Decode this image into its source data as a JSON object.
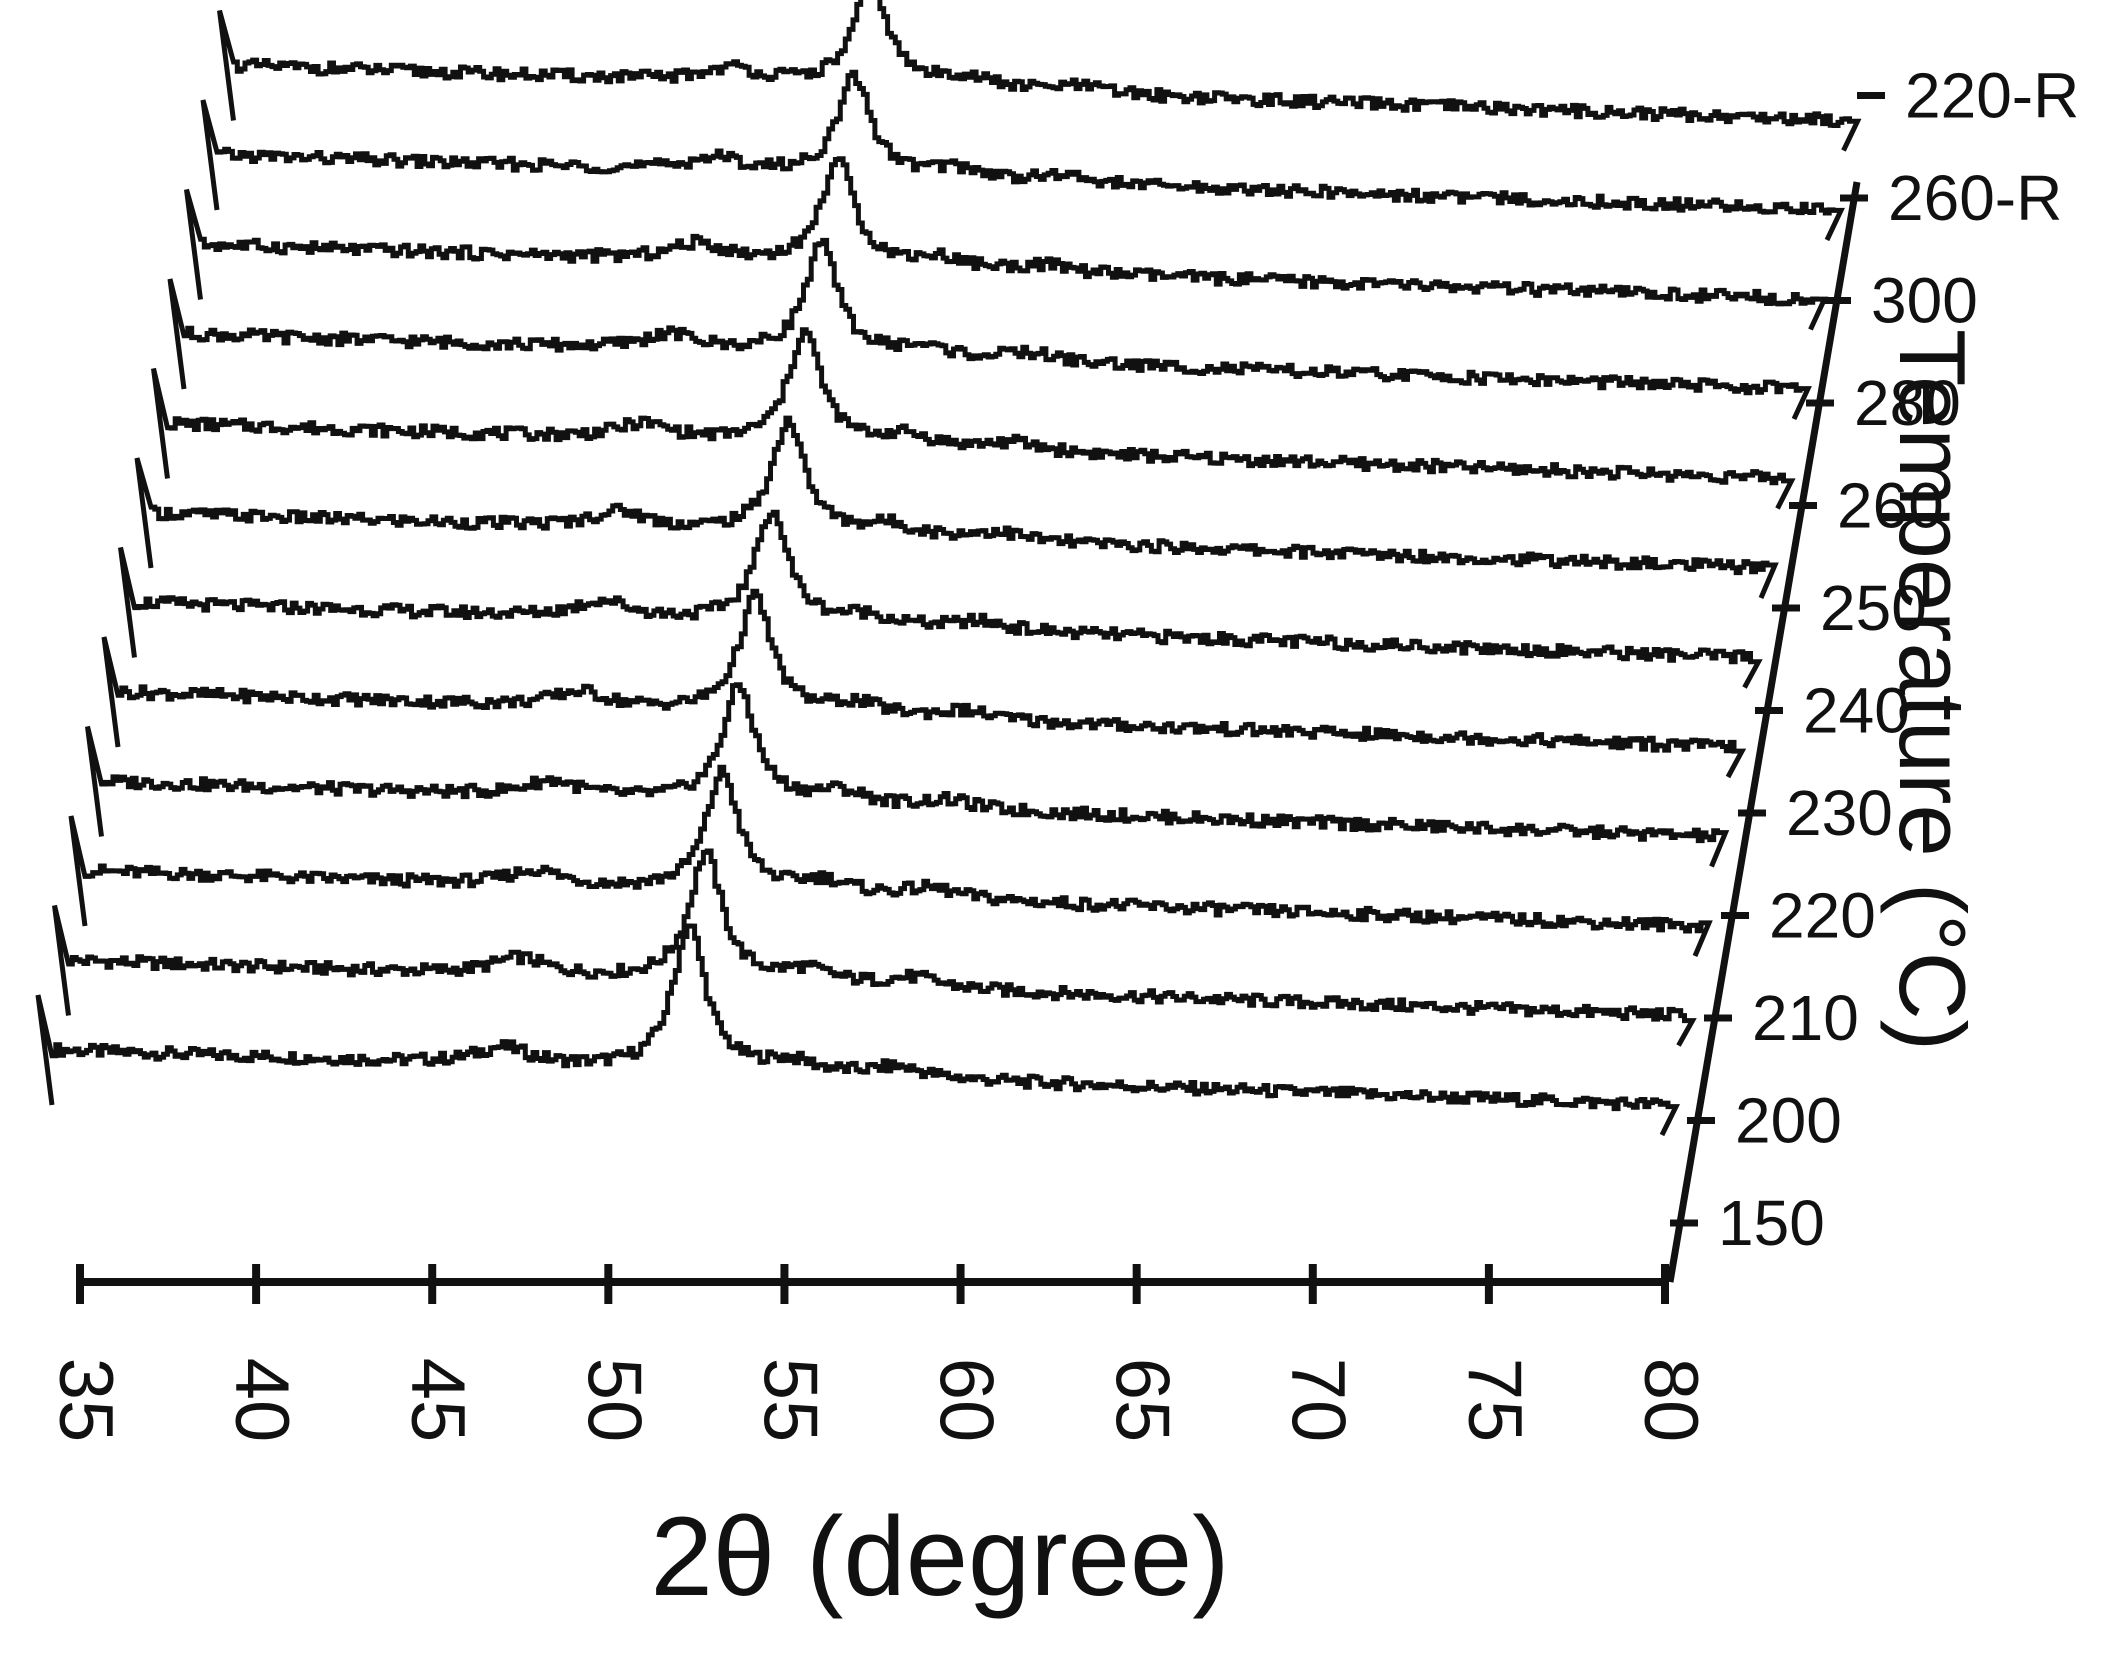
{
  "chart_data": {
    "type": "line",
    "style": "3d-waterfall",
    "xlabel": "2θ (degree)",
    "ylabel": "Temperature (°C)",
    "xlim": [
      35,
      80
    ],
    "x_ticks": [
      35,
      40,
      45,
      50,
      55,
      60,
      65,
      70,
      75,
      80
    ],
    "x_tick_labels": [
      "35",
      "40",
      "45",
      "50",
      "55",
      "60",
      "65",
      "70",
      "75",
      "80"
    ],
    "temperature_labels": [
      "220-R",
      "260-R",
      "300",
      "280",
      "260",
      "250",
      "240",
      "230",
      "220",
      "210",
      "200",
      "150"
    ],
    "grid": false,
    "legend": "none",
    "line_color": "#111111",
    "series": [
      {
        "name": "150",
        "peaks": [
          {
            "x": 52.7,
            "height": 0.85
          },
          {
            "x": 47.5,
            "height": 0.1
          },
          {
            "x": 55.5,
            "height": 0.07
          },
          {
            "x": 58.5,
            "height": 0.06
          }
        ]
      },
      {
        "name": "200",
        "peaks": [
          {
            "x": 52.7,
            "height": 0.75
          },
          {
            "x": 47.5,
            "height": 0.1
          },
          {
            "x": 55.5,
            "height": 0.08
          },
          {
            "x": 58.5,
            "height": 0.06
          }
        ]
      },
      {
        "name": "210",
        "peaks": [
          {
            "x": 52.7,
            "height": 0.7
          },
          {
            "x": 47.5,
            "height": 0.09
          },
          {
            "x": 55.5,
            "height": 0.08
          },
          {
            "x": 58.5,
            "height": 0.06
          }
        ]
      },
      {
        "name": "220",
        "peaks": [
          {
            "x": 52.7,
            "height": 0.68
          },
          {
            "x": 47.5,
            "height": 0.09
          },
          {
            "x": 55.5,
            "height": 0.08
          },
          {
            "x": 58.5,
            "height": 0.05
          }
        ]
      },
      {
        "name": "230",
        "peaks": [
          {
            "x": 52.7,
            "height": 0.68
          },
          {
            "x": 47.8,
            "height": 0.09
          },
          {
            "x": 55.5,
            "height": 0.07
          },
          {
            "x": 58.5,
            "height": 0.05
          }
        ]
      },
      {
        "name": "240",
        "peaks": [
          {
            "x": 52.7,
            "height": 0.66
          },
          {
            "x": 48.0,
            "height": 0.1
          },
          {
            "x": 55.3,
            "height": 0.06
          },
          {
            "x": 58.5,
            "height": 0.05
          }
        ]
      },
      {
        "name": "250",
        "peaks": [
          {
            "x": 52.7,
            "height": 0.66
          },
          {
            "x": 48.0,
            "height": 0.1
          },
          {
            "x": 55.5,
            "height": 0.07
          },
          {
            "x": 58.5,
            "height": 0.05
          }
        ]
      },
      {
        "name": "260",
        "peaks": [
          {
            "x": 52.7,
            "height": 0.66
          },
          {
            "x": 48.2,
            "height": 0.09
          },
          {
            "x": 55.5,
            "height": 0.07
          },
          {
            "x": 58.5,
            "height": 0.05
          }
        ]
      },
      {
        "name": "280",
        "peaks": [
          {
            "x": 52.7,
            "height": 0.65
          },
          {
            "x": 48.5,
            "height": 0.09
          },
          {
            "x": 55.5,
            "height": 0.06
          },
          {
            "x": 58.5,
            "height": 0.05
          }
        ]
      },
      {
        "name": "300",
        "peaks": [
          {
            "x": 52.7,
            "height": 0.62
          },
          {
            "x": 48.8,
            "height": 0.1
          },
          {
            "x": 55.5,
            "height": 0.06
          },
          {
            "x": 58.5,
            "height": 0.04
          }
        ]
      },
      {
        "name": "260-R",
        "peaks": [
          {
            "x": 52.7,
            "height": 0.58
          },
          {
            "x": 48.8,
            "height": 0.08
          },
          {
            "x": 55.5,
            "height": 0.06
          },
          {
            "x": 58.5,
            "height": 0.04
          }
        ]
      },
      {
        "name": "220-R",
        "peaks": [
          {
            "x": 52.7,
            "height": 0.62
          },
          {
            "x": 48.8,
            "height": 0.08
          },
          {
            "x": 55.3,
            "height": 0.07
          },
          {
            "x": 58.5,
            "height": 0.04
          }
        ]
      }
    ]
  }
}
